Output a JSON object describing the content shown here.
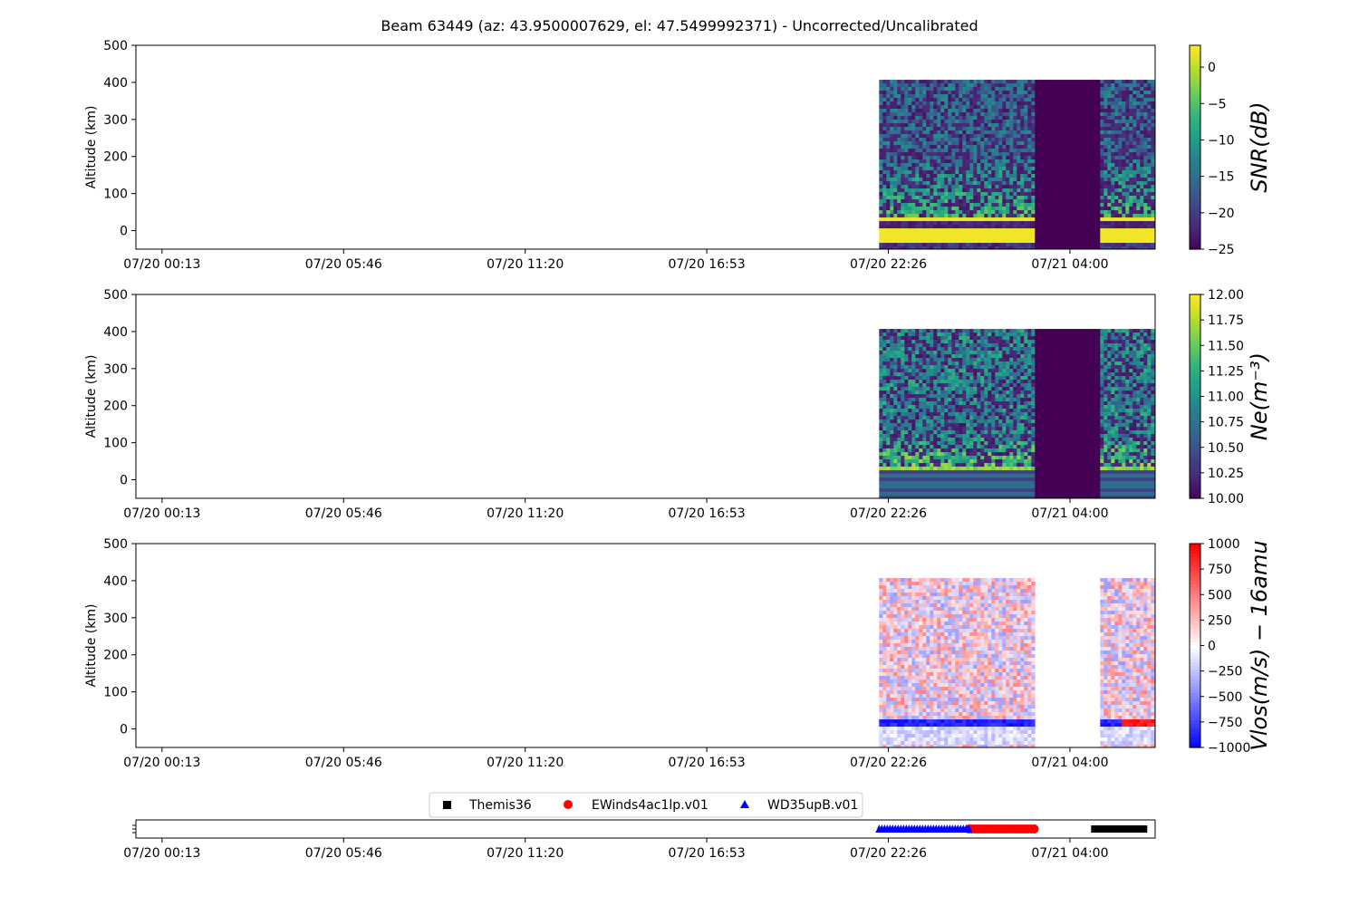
{
  "figure": {
    "title": "Beam 63449 (az: 43.9500007629, el: 47.5499992371) - Uncorrected/Uncalibrated"
  },
  "chart_data": [
    {
      "type": "heatmap",
      "id": "snr",
      "ylabel": "Altitude (km)",
      "ylim": [
        -50,
        500
      ],
      "yticks": [
        0,
        100,
        200,
        300,
        400,
        500
      ],
      "xtick_labels": [
        "07/20 00:13",
        "07/20 05:46",
        "07/20 11:20",
        "07/20 16:53",
        "07/20 22:26",
        "07/21 04:00"
      ],
      "xlim_hours": [
        -0.8,
        30.4
      ],
      "data_extent_hours": [
        21.95,
        30.65
      ],
      "gap_hours": [
        26.7,
        28.65
      ],
      "data_alt_range": [
        -48,
        407
      ],
      "colorbar": {
        "label": "SNR(dB)",
        "range": [
          -25,
          3
        ],
        "ticks": [
          0,
          -5,
          -10,
          -15,
          -20,
          -25
        ],
        "tick_labels": [
          "0",
          "−5",
          "−10",
          "−15",
          "−20",
          "−25"
        ],
        "colormap": "viridis"
      }
    },
    {
      "type": "heatmap",
      "id": "ne",
      "ylabel": "Altitude (km)",
      "ylim": [
        -50,
        500
      ],
      "yticks": [
        0,
        100,
        200,
        300,
        400,
        500
      ],
      "xtick_labels": [
        "07/20 00:13",
        "07/20 05:46",
        "07/20 11:20",
        "07/20 16:53",
        "07/20 22:26",
        "07/21 04:00"
      ],
      "xlim_hours": [
        -0.8,
        30.4
      ],
      "data_extent_hours": [
        21.95,
        30.65
      ],
      "gap_hours": [
        26.7,
        28.65
      ],
      "data_alt_range": [
        -48,
        407
      ],
      "colorbar": {
        "label": "Ne(m⁻³)",
        "range": [
          10.0,
          12.0
        ],
        "ticks": [
          10.0,
          10.25,
          10.5,
          10.75,
          11.0,
          11.25,
          11.5,
          11.75,
          12.0
        ],
        "tick_labels": [
          "10.00",
          "10.25",
          "10.50",
          "10.75",
          "11.00",
          "11.25",
          "11.50",
          "11.75",
          "12.00"
        ],
        "colormap": "viridis"
      }
    },
    {
      "type": "heatmap",
      "id": "vlos",
      "ylabel": "Altitude (km)",
      "ylim": [
        -50,
        500
      ],
      "yticks": [
        0,
        100,
        200,
        300,
        400,
        500
      ],
      "xtick_labels": [
        "07/20 00:13",
        "07/20 05:46",
        "07/20 11:20",
        "07/20 16:53",
        "07/20 22:26",
        "07/21 04:00"
      ],
      "xlim_hours": [
        -0.8,
        30.4
      ],
      "data_extent_hours": [
        21.95,
        30.65
      ],
      "gap_hours": [
        26.7,
        28.65
      ],
      "data_alt_range": [
        -48,
        407
      ],
      "colorbar": {
        "label": "Vlos(m/s) − 16amu",
        "range": [
          -1000,
          1000
        ],
        "ticks": [
          1000,
          750,
          500,
          250,
          0,
          -250,
          -500,
          -750,
          -1000
        ],
        "tick_labels": [
          "1000",
          "750",
          "500",
          "250",
          "0",
          "−250",
          "−500",
          "−750",
          "−1000"
        ],
        "colormap": "bwr"
      }
    },
    {
      "type": "scatter",
      "id": "timeline",
      "xtick_labels": [
        "07/20 00:13",
        "07/20 05:46",
        "07/20 11:20",
        "07/20 16:53",
        "07/20 22:26",
        "07/21 04:00"
      ],
      "xlim_hours": [
        -0.8,
        30.4
      ],
      "series": [
        {
          "name": "Themis36",
          "marker": "square",
          "color": "#000000",
          "x_range_hours": [
            28.55,
            30.6
          ]
        },
        {
          "name": "EWinds4ac1lp.v01",
          "marker": "circle",
          "color": "#ff0000",
          "x_range_hours": [
            24.7,
            26.75
          ]
        },
        {
          "name": "WD35upB.v01",
          "marker": "triangle",
          "color": "#0000ff",
          "x_range_hours": [
            21.95,
            24.7
          ]
        }
      ]
    }
  ]
}
